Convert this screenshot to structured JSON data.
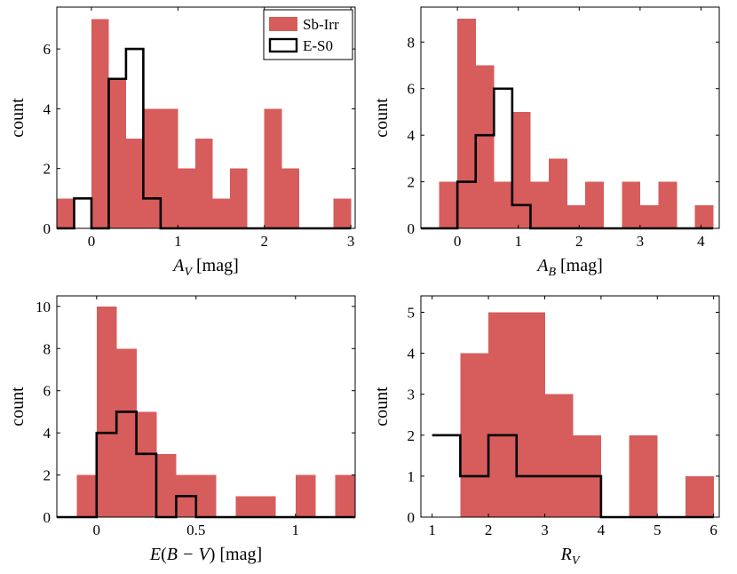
{
  "colors": {
    "filled": "#D75C5C",
    "outline": "#000000",
    "axis": "#000000"
  },
  "legend": {
    "placement": "top-right of first panel",
    "entries": [
      "Sb-Irr",
      "E-S0"
    ]
  },
  "chart_data": [
    {
      "type": "bar",
      "title": "",
      "xlabel": "A_V [mag]",
      "ylabel": "count",
      "xlim": [
        -0.4,
        3.05
      ],
      "ylim": [
        0,
        7.4
      ],
      "xticks": [
        0,
        1,
        2,
        3
      ],
      "xtick_labels": [
        "0",
        "1",
        "2",
        "3"
      ],
      "yticks": [
        0,
        2,
        4,
        6
      ],
      "ytick_labels": [
        "0",
        "2",
        "4",
        "6"
      ],
      "series": [
        {
          "name": "Sb-Irr",
          "style": "filled",
          "bin_edges": [
            -0.4,
            -0.2,
            0.0,
            0.2,
            0.4,
            0.6,
            0.8,
            1.0,
            1.2,
            1.4,
            1.6,
            1.8,
            2.0,
            2.2,
            2.4,
            2.6,
            2.8,
            3.0
          ],
          "counts": [
            1,
            0,
            7,
            5,
            3,
            4,
            4,
            2,
            3,
            1,
            2,
            0,
            4,
            2,
            0,
            0,
            1
          ]
        },
        {
          "name": "E-S0",
          "style": "outline",
          "bin_edges": [
            -0.4,
            -0.2,
            0.0,
            0.2,
            0.4,
            0.6,
            0.8,
            1.0,
            1.2,
            1.4,
            1.6,
            1.8,
            2.0,
            2.2,
            2.4,
            2.6,
            2.8,
            3.0
          ],
          "counts": [
            0,
            1,
            0,
            5,
            6,
            1,
            0,
            0,
            0,
            0,
            0,
            0,
            0,
            0,
            0,
            0,
            0
          ]
        }
      ]
    },
    {
      "type": "bar",
      "title": "",
      "xlabel": "A_B [mag]",
      "ylabel": "count",
      "xlim": [
        -0.6,
        4.3
      ],
      "ylim": [
        0,
        9.5
      ],
      "xticks": [
        0,
        1,
        2,
        3,
        4
      ],
      "xtick_labels": [
        "0",
        "1",
        "2",
        "3",
        "4"
      ],
      "yticks": [
        0,
        2,
        4,
        6,
        8
      ],
      "ytick_labels": [
        "0",
        "2",
        "4",
        "6",
        "8"
      ],
      "series": [
        {
          "name": "Sb-Irr",
          "style": "filled",
          "bin_edges": [
            -0.6,
            -0.3,
            0.0,
            0.3,
            0.6,
            0.9,
            1.2,
            1.5,
            1.8,
            2.1,
            2.4,
            2.7,
            3.0,
            3.3,
            3.6,
            3.9,
            4.2
          ],
          "counts": [
            0,
            2,
            9,
            7,
            2,
            5,
            2,
            3,
            1,
            2,
            0,
            2,
            1,
            2,
            0,
            1
          ]
        },
        {
          "name": "E-S0",
          "style": "outline",
          "bin_edges": [
            -0.6,
            -0.3,
            0.0,
            0.3,
            0.6,
            0.9,
            1.2,
            1.5,
            1.8,
            2.1,
            2.4,
            2.7,
            3.0,
            3.3,
            3.6,
            3.9,
            4.2
          ],
          "counts": [
            0,
            0,
            2,
            4,
            6,
            1,
            0,
            0,
            0,
            0,
            0,
            0,
            0,
            0,
            0,
            0
          ]
        }
      ]
    },
    {
      "type": "bar",
      "title": "",
      "xlabel": "E(B − V) [mag]",
      "ylabel": "count",
      "xlim": [
        -0.2,
        1.3
      ],
      "ylim": [
        0,
        10.5
      ],
      "xticks": [
        0,
        0.5,
        1
      ],
      "xtick_labels": [
        "0",
        "0.5",
        "1"
      ],
      "yticks": [
        0,
        2,
        4,
        6,
        8,
        10
      ],
      "ytick_labels": [
        "0",
        "2",
        "4",
        "6",
        "8",
        "10"
      ],
      "series": [
        {
          "name": "Sb-Irr",
          "style": "filled",
          "bin_edges": [
            -0.2,
            -0.1,
            0.0,
            0.1,
            0.2,
            0.3,
            0.4,
            0.5,
            0.6,
            0.7,
            0.8,
            0.9,
            1.0,
            1.1,
            1.2,
            1.3
          ],
          "counts": [
            0,
            2,
            10,
            8,
            5,
            3,
            2,
            2,
            0,
            1,
            1,
            0,
            2,
            0,
            2
          ]
        },
        {
          "name": "E-S0",
          "style": "outline",
          "bin_edges": [
            -0.2,
            -0.1,
            0.0,
            0.1,
            0.2,
            0.3,
            0.4,
            0.5,
            0.6,
            0.7,
            0.8,
            0.9,
            1.0,
            1.1,
            1.2,
            1.3
          ],
          "counts": [
            0,
            0,
            4,
            5,
            3,
            0,
            1,
            0,
            0,
            0,
            0,
            0,
            0,
            0,
            0
          ]
        }
      ]
    },
    {
      "type": "bar",
      "title": "",
      "xlabel": "R_V",
      "ylabel": "count",
      "xlim": [
        0.8,
        6.1
      ],
      "ylim": [
        0,
        5.4
      ],
      "xticks": [
        1,
        2,
        3,
        4,
        5,
        6
      ],
      "xtick_labels": [
        "1",
        "2",
        "3",
        "4",
        "5",
        "6"
      ],
      "yticks": [
        0,
        1,
        2,
        3,
        4,
        5
      ],
      "ytick_labels": [
        "0",
        "1",
        "2",
        "3",
        "4",
        "5"
      ],
      "series": [
        {
          "name": "Sb-Irr",
          "style": "filled",
          "bin_edges": [
            1.0,
            1.5,
            2.0,
            2.5,
            3.0,
            3.5,
            4.0,
            4.5,
            5.0,
            5.5,
            6.0
          ],
          "counts": [
            0,
            4,
            5,
            5,
            3,
            2,
            0,
            2,
            0,
            1
          ]
        },
        {
          "name": "E-S0",
          "style": "outline",
          "bin_edges": [
            1.0,
            1.5,
            2.0,
            2.5,
            3.0,
            3.5,
            4.0,
            4.5,
            5.0,
            5.5,
            6.0
          ],
          "counts": [
            2,
            1,
            2,
            1,
            1,
            1,
            0,
            0,
            0,
            0
          ]
        }
      ]
    }
  ]
}
